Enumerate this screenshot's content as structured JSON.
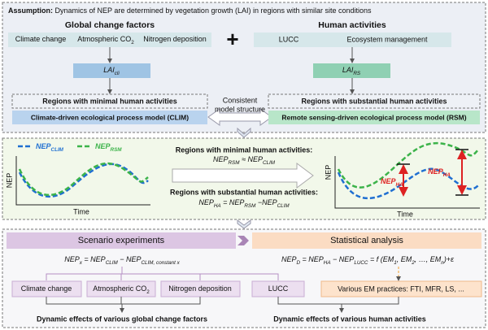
{
  "assumption": {
    "label": "Assumption:",
    "text": "Dynamics of NEP are determined by vegetation growth (LAI) in regions with similar site conditions"
  },
  "global_change_factors": {
    "title": "Global change factors",
    "items": [
      [
        "Climate change"
      ],
      [
        "Atmospheric CO",
        {
          "sub": "2"
        }
      ],
      [
        "Nitrogen deposition"
      ]
    ]
  },
  "plus": "+",
  "human_activities": {
    "title": "Human activities",
    "items": [
      "LUCC",
      "Ecosystem management"
    ]
  },
  "lai_cli": [
    "LAI",
    {
      "sub": "cli"
    }
  ],
  "lai_rs": [
    "LAI",
    {
      "sub": "RS"
    }
  ],
  "regions_minimal": "Regions with minimal human activities",
  "regions_substantial": "Regions with substantial human activities",
  "consistent": [
    "Consistent",
    "model structure"
  ],
  "model_clim": "Climate-driven ecological process model (CLIM)",
  "model_rsm": "Remote sensing-driven ecological process model (RSM)",
  "comparison": {
    "left_chart": {
      "legend": [
        [
          "NEP",
          {
            "sub": "CLIM"
          }
        ],
        [
          "NEP",
          {
            "sub": "RSM"
          }
        ]
      ],
      "y_label": "NEP",
      "x_label": "Time"
    },
    "minimal": {
      "title": "Regions with minimal human activities:",
      "equation": [
        "NEP",
        {
          "sub": "RSM"
        },
        " ≈ NEP",
        {
          "sub": "CLIM"
        }
      ]
    },
    "substantial": {
      "title": "Regions with substantial human activities:",
      "equation": [
        "NEP",
        {
          "sub": "HA"
        },
        " = NEP",
        {
          "sub": "RSM"
        },
        " −NEP",
        {
          "sub": "CLIM"
        }
      ]
    },
    "right_chart": {
      "y_label": "NEP",
      "x_label": "Time",
      "labels": [
        [
          "NEP",
          {
            "sub": "HA"
          }
        ],
        [
          "NEP",
          {
            "sub": "HA"
          }
        ]
      ]
    }
  },
  "scenario": {
    "title": "Scenario experiments",
    "equation": [
      "NEP",
      {
        "sub": "x"
      },
      " = NEP",
      {
        "sub": "CLIM"
      },
      " − NEP",
      {
        "sub": "CLIM, constant x"
      }
    ],
    "items": [
      [
        "Climate change"
      ],
      [
        "Atmospheric CO",
        {
          "sub": "2"
        }
      ],
      [
        "Nitrogen deposition"
      ],
      [
        "LUCC"
      ]
    ],
    "result": "Dynamic effects of various global change factors"
  },
  "statistical": {
    "title": "Statistical analysis",
    "equation": [
      "NEP",
      {
        "sub": "D"
      },
      " = NEP",
      {
        "sub": "HA"
      },
      " − NEP",
      {
        "sub": "LUCC"
      },
      " = f (EM",
      {
        "sub": "1"
      },
      ", EM",
      {
        "sub": "2"
      },
      ", …, EM",
      {
        "sub": "n"
      },
      ")+ε"
    ],
    "item": "Various EM practices: FTI, MFR, LS, ...",
    "result": "Dynamic effects of various human activities"
  }
}
